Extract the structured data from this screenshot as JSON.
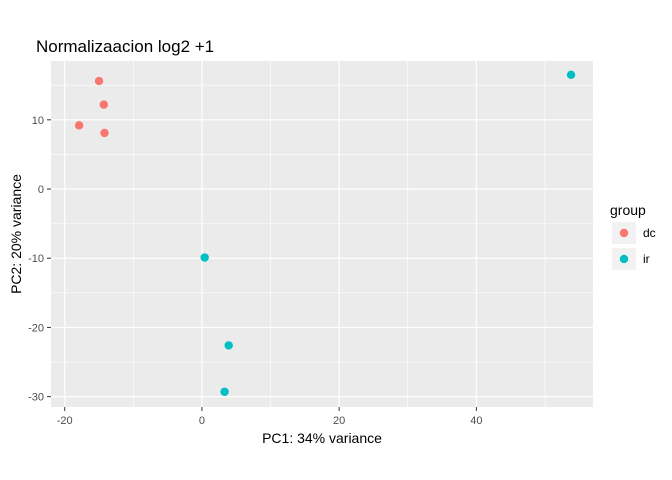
{
  "chart_data": {
    "type": "scatter",
    "title": "Normalizaacion log2 +1",
    "xlabel": "PC1: 34% variance",
    "ylabel": "PC2: 20% variance",
    "xlim": [
      -22,
      57
    ],
    "ylim": [
      -31.5,
      18.5
    ],
    "x_ticks": [
      -20,
      0,
      20,
      40
    ],
    "y_ticks": [
      -30,
      -20,
      -10,
      0,
      10
    ],
    "x_tick_labels": [
      "-20",
      "0",
      "20",
      "40"
    ],
    "y_tick_labels": [
      "-30",
      "-20",
      "-10",
      "0",
      "10"
    ],
    "grid": true,
    "legend": {
      "title": "group",
      "placement": "right",
      "entries": [
        {
          "label": "dc",
          "color": "#F8766D"
        },
        {
          "label": "ir",
          "color": "#00BFC4"
        }
      ]
    },
    "series": [
      {
        "name": "dc",
        "color": "#F8766D",
        "points": [
          {
            "x": -15,
            "y": 15.6
          },
          {
            "x": -14.3,
            "y": 12.2
          },
          {
            "x": -17.9,
            "y": 9.2
          },
          {
            "x": -14.2,
            "y": 8.1
          }
        ]
      },
      {
        "name": "ir",
        "color": "#00BFC4",
        "points": [
          {
            "x": 53.8,
            "y": 16.5
          },
          {
            "x": 0.4,
            "y": -9.9
          },
          {
            "x": 3.9,
            "y": -22.6
          },
          {
            "x": 3.3,
            "y": -29.3
          }
        ]
      }
    ]
  }
}
